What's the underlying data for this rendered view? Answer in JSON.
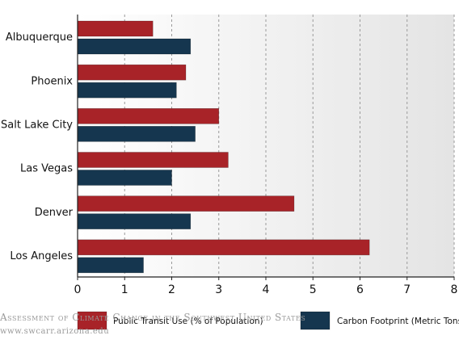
{
  "chart_data": {
    "type": "bar",
    "orientation": "horizontal",
    "categories": [
      "Albuquerque",
      "Phoenix",
      "Salt Lake City",
      "Las Vegas",
      "Denver",
      "Los Angeles"
    ],
    "series": [
      {
        "name": "Public Transit Use (% of Population)",
        "color": "#a82328",
        "values": [
          1.6,
          2.3,
          3.0,
          3.2,
          4.6,
          6.2
        ]
      },
      {
        "name": "Carbon Footprint (Metric Tons)",
        "color": "#15364f",
        "values": [
          2.4,
          2.1,
          2.5,
          2.0,
          2.4,
          1.4
        ]
      }
    ],
    "xlim": [
      0,
      8
    ],
    "xticks": [
      "0",
      "1",
      "2",
      "3",
      "4",
      "5",
      "6",
      "7",
      "8"
    ],
    "grid": true,
    "legend_position": "bottom"
  },
  "watermark": {
    "line1": "Assessment of Climate Change in the Southwest United States",
    "line2": "www.swcarr.arizona.edu"
  }
}
